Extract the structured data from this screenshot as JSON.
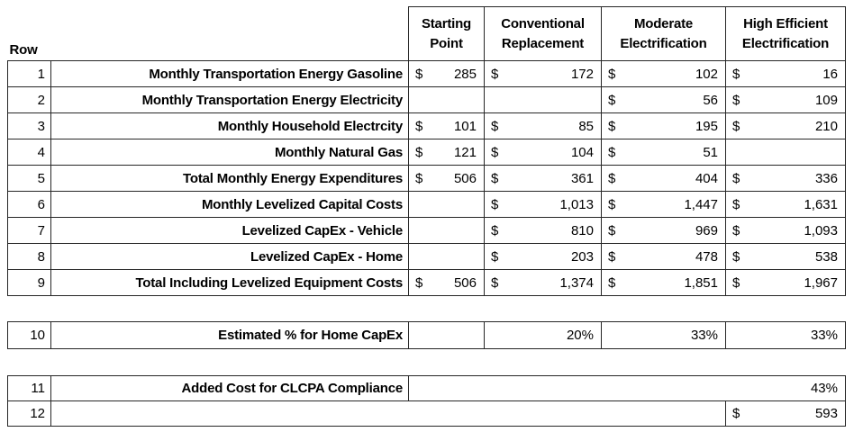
{
  "colors": {
    "background": "#ffffff",
    "text": "#000000",
    "border": "#262626"
  },
  "corner": {
    "label": "Row"
  },
  "columns": [
    {
      "label": "Starting Point"
    },
    {
      "label": "Conventional Replacement"
    },
    {
      "label": "Moderate Electrification"
    },
    {
      "label": "High Efficient Electrification"
    }
  ],
  "main": {
    "rows": [
      {
        "num": "1",
        "label": "Monthly Transportation Energy Gasoline",
        "cells": [
          {
            "c": "$",
            "v": "285"
          },
          {
            "c": "$",
            "v": "172"
          },
          {
            "c": "$",
            "v": "102"
          },
          {
            "c": "$",
            "v": "16"
          }
        ]
      },
      {
        "num": "2",
        "label": "Monthly Transportation Energy Electricity",
        "cells": [
          {
            "c": "",
            "v": ""
          },
          {
            "c": "",
            "v": ""
          },
          {
            "c": "$",
            "v": "56"
          },
          {
            "c": "$",
            "v": "109"
          }
        ]
      },
      {
        "num": "3",
        "label": "Monthly Household Electrcity",
        "cells": [
          {
            "c": "$",
            "v": "101"
          },
          {
            "c": "$",
            "v": "85"
          },
          {
            "c": "$",
            "v": "195"
          },
          {
            "c": "$",
            "v": "210"
          }
        ]
      },
      {
        "num": "4",
        "label": "Monthly Natural Gas",
        "cells": [
          {
            "c": "$",
            "v": "121"
          },
          {
            "c": "$",
            "v": "104"
          },
          {
            "c": "$",
            "v": "51"
          },
          {
            "c": "",
            "v": ""
          }
        ]
      },
      {
        "num": "5",
        "label": "Total Monthly Energy Expenditures",
        "cells": [
          {
            "c": "$",
            "v": "506"
          },
          {
            "c": "$",
            "v": "361"
          },
          {
            "c": "$",
            "v": "404"
          },
          {
            "c": "$",
            "v": "336"
          }
        ]
      },
      {
        "num": "6",
        "label": "Monthly Levelized Capital Costs",
        "cells": [
          {
            "c": "",
            "v": ""
          },
          {
            "c": "$",
            "v": "1,013"
          },
          {
            "c": "$",
            "v": "1,447"
          },
          {
            "c": "$",
            "v": "1,631"
          }
        ]
      },
      {
        "num": "7",
        "label": "Levelized CapEx - Vehicle",
        "cells": [
          {
            "c": "",
            "v": ""
          },
          {
            "c": "$",
            "v": "810"
          },
          {
            "c": "$",
            "v": "969"
          },
          {
            "c": "$",
            "v": "1,093"
          }
        ]
      },
      {
        "num": "8",
        "label": "Levelized CapEx - Home",
        "cells": [
          {
            "c": "",
            "v": ""
          },
          {
            "c": "$",
            "v": "203"
          },
          {
            "c": "$",
            "v": "478"
          },
          {
            "c": "$",
            "v": "538"
          }
        ]
      },
      {
        "num": "9",
        "label": "Total Including Levelized Equipment Costs",
        "cells": [
          {
            "c": "$",
            "v": "506"
          },
          {
            "c": "$",
            "v": "1,374"
          },
          {
            "c": "$",
            "v": "1,851"
          },
          {
            "c": "$",
            "v": "1,967"
          }
        ]
      }
    ]
  },
  "capex": {
    "num": "10",
    "label": "Estimated % for Home CapEx",
    "cells": [
      {
        "v": ""
      },
      {
        "v": "20%"
      },
      {
        "v": "33%"
      },
      {
        "v": "33%"
      }
    ]
  },
  "compliance": {
    "row11": {
      "num": "11",
      "label": "Added Cost for CLCPA Compliance",
      "merged_value": "43%"
    },
    "row12": {
      "num": "12",
      "merged_value": "",
      "currency": "$",
      "amount": "593"
    }
  }
}
